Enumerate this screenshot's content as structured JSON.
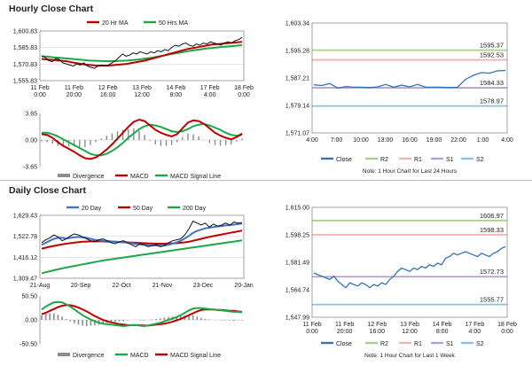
{
  "sections": {
    "hourly": {
      "title": "Hourly Close Chart"
    },
    "daily": {
      "title": "Daily Close Chart"
    }
  },
  "colors": {
    "price": "#111111",
    "ma_fast": "#c00000",
    "ma_slow": "#1ea64a",
    "close": "#2f74b5",
    "r2": "#a8d08d",
    "r1": "#f0b3b3",
    "s1": "#b6a0c8",
    "s2": "#7fc8d8",
    "macd": "#c00000",
    "signal": "#1ea64a",
    "div": "#8c8c8c",
    "blue_ma": "#4472c4",
    "grid": "#d9d9d9"
  },
  "chart_data": [
    {
      "id": "hourly-ma",
      "type": "line",
      "legend": [
        "20 Hr MA",
        "50 Hrs MA"
      ],
      "y_ticks": [
        "1,600.83",
        "1,585.83",
        "1,570.83",
        "1,555.83"
      ],
      "ylim": [
        1555.83,
        1600.83
      ],
      "x_ticks": [
        "11 Feb\n0:00",
        "11 Feb\n20:00",
        "12 Feb\n16:00",
        "13 Feb\n12:00",
        "14 Feb\n8:00",
        "17 Feb\n4:00",
        "18 Feb\n0:00"
      ],
      "series": [
        {
          "name": "Close",
          "values": [
            1578,
            1577,
            1574,
            1573,
            1576,
            1575,
            1572,
            1571,
            1570,
            1569,
            1571,
            1570,
            1572,
            1569,
            1568,
            1567,
            1569,
            1570,
            1569,
            1570,
            1572,
            1574,
            1577,
            1580,
            1578,
            1579,
            1581,
            1580,
            1582,
            1581,
            1580,
            1582,
            1581,
            1583,
            1582,
            1584,
            1583,
            1586,
            1588,
            1587,
            1589,
            1590,
            1588,
            1587,
            1589,
            1588,
            1590,
            1589,
            1591,
            1590,
            1589,
            1588,
            1590,
            1591,
            1590,
            1592,
            1593,
            1595
          ]
        },
        {
          "name": "20 Hr MA",
          "values": [
            1575.5,
            1575,
            1574.5,
            1574,
            1573.5,
            1572.5,
            1571.5,
            1570.5,
            1570,
            1569.5,
            1569.5,
            1569.5,
            1570,
            1570.5,
            1571,
            1572,
            1573,
            1574,
            1575.5,
            1577,
            1578.5,
            1580,
            1581.5,
            1583,
            1584.5,
            1585.5,
            1586.5,
            1587.5,
            1588.5,
            1589,
            1589.5,
            1590,
            1590.5,
            1591
          ]
        },
        {
          "name": "50 Hrs MA",
          "values": [
            1578,
            1577.5,
            1577,
            1576.5,
            1576,
            1575.5,
            1575,
            1574.5,
            1574,
            1573.8,
            1573.6,
            1573.5,
            1573.5,
            1573.8,
            1574,
            1574.5,
            1575,
            1575.8,
            1576.5,
            1577.5,
            1578.5,
            1579.5,
            1580.5,
            1581.5,
            1582.5,
            1583.3,
            1584,
            1584.8,
            1585.5,
            1586,
            1586.5,
            1587,
            1587.5,
            1588
          ]
        }
      ]
    },
    {
      "id": "hourly-macd",
      "type": "line",
      "legend": [
        "Divergence",
        "MACD",
        "MACD Signal Line"
      ],
      "y_ticks": [
        "3.65",
        "0.00",
        "-3.65"
      ],
      "ylim": [
        -3.65,
        3.65
      ],
      "series": [
        {
          "name": "MACD",
          "values": [
            0.8,
            0.7,
            0.3,
            -0.3,
            -0.8,
            -1.2,
            -1.6,
            -2.1,
            -2.5,
            -2.6,
            -2.4,
            -1.9,
            -1.3,
            -0.6,
            0.2,
            1.0,
            1.8,
            2.5,
            2.8,
            2.6,
            2.0,
            1.4,
            1.0,
            0.7,
            0.5,
            0.8,
            1.6,
            2.4,
            2.7,
            2.6,
            2.2,
            1.6,
            1.0,
            0.6,
            0.3,
            0.1,
            0.4,
            0.9
          ]
        },
        {
          "name": "MACD Signal Line",
          "values": [
            1.0,
            1.0,
            0.8,
            0.5,
            0.1,
            -0.3,
            -0.7,
            -1.1,
            -1.5,
            -1.9,
            -2.1,
            -2.1,
            -1.9,
            -1.5,
            -1.0,
            -0.4,
            0.3,
            0.9,
            1.5,
            1.9,
            2.1,
            2.0,
            1.8,
            1.5,
            1.2,
            1.1,
            1.2,
            1.5,
            1.9,
            2.1,
            2.2,
            2.0,
            1.7,
            1.4,
            1.0,
            0.7,
            0.6,
            0.7
          ]
        },
        {
          "name": "Divergence",
          "values": [
            -0.2,
            -0.3,
            -0.5,
            -0.8,
            -0.9,
            -0.9,
            -0.9,
            -1.0,
            -1.0,
            -0.7,
            -0.3,
            0.2,
            0.6,
            0.9,
            1.2,
            1.4,
            1.5,
            1.6,
            1.3,
            0.7,
            -0.1,
            -0.6,
            -0.8,
            -0.8,
            -0.7,
            -0.3,
            0.4,
            0.9,
            0.8,
            0.5,
            0.0,
            -0.4,
            -0.7,
            -0.8,
            -0.7,
            -0.6,
            -0.2,
            0.2
          ]
        }
      ]
    },
    {
      "id": "hourly-levels",
      "type": "line",
      "legend": [
        "Close",
        "R2",
        "R1",
        "S1",
        "S2"
      ],
      "note": "Note: 1 Hour Chart for Last 24 Hours",
      "y_ticks": [
        "1,603.34",
        "1,595.28",
        "1,587.21",
        "1,579.14",
        "1,571.07"
      ],
      "ylim": [
        1571.07,
        1603.34
      ],
      "x_ticks": [
        "4:00",
        "7:00",
        "10:00",
        "13:00",
        "16:00",
        "19:00",
        "22:00",
        "1:00",
        "4:00"
      ],
      "levels": [
        {
          "name": "R2",
          "value": 1595.37,
          "label": "1595.37"
        },
        {
          "name": "R1",
          "value": 1592.53,
          "label": "1592.53"
        },
        {
          "name": "S1",
          "value": 1584.33,
          "label": "1584.33"
        },
        {
          "name": "S2",
          "value": 1578.97,
          "label": "1578.97"
        }
      ],
      "close": [
        1585.2,
        1585.0,
        1585.6,
        1584.2,
        1584.7,
        1584.5,
        1584.5,
        1584.4,
        1584.6,
        1585.3,
        1584.5,
        1585.1,
        1584.6,
        1585.3,
        1584.5,
        1584.5,
        1584.5,
        1584.4,
        1584.5,
        1586.8,
        1588.0,
        1588.8,
        1588.6,
        1589.3,
        1589.4
      ]
    },
    {
      "id": "daily-ma",
      "type": "line",
      "legend": [
        "20 Day",
        "50 Day",
        "200 Day"
      ],
      "y_ticks": [
        "1,629.43",
        "1,522.78",
        "1,416.12",
        "1,309.47"
      ],
      "ylim": [
        1309.47,
        1629.43
      ],
      "x_ticks": [
        "21-Aug",
        "20-Sep",
        "22-Oct",
        "21-Nov",
        "23-Dec",
        "20-Jan"
      ],
      "series": [
        {
          "name": "Close",
          "values": [
            1490,
            1505,
            1515,
            1530,
            1520,
            1500,
            1510,
            1525,
            1535,
            1530,
            1520,
            1510,
            1500,
            1495,
            1505,
            1510,
            1500,
            1490,
            1485,
            1495,
            1500,
            1490,
            1480,
            1470,
            1485,
            1480,
            1470,
            1475,
            1480,
            1470,
            1475,
            1490,
            1500,
            1505,
            1510,
            1530,
            1560,
            1600,
            1590,
            1580,
            1590,
            1570,
            1585,
            1575,
            1580,
            1590,
            1580,
            1595,
            1590,
            1592
          ]
        },
        {
          "name": "20 Day",
          "values": [
            1480,
            1490,
            1500,
            1510,
            1515,
            1515,
            1512,
            1515,
            1518,
            1520,
            1518,
            1515,
            1510,
            1505,
            1502,
            1500,
            1500,
            1497,
            1495,
            1493,
            1492,
            1490,
            1488,
            1484,
            1482,
            1480,
            1478,
            1477,
            1476,
            1475,
            1476,
            1480,
            1485,
            1492,
            1500,
            1512,
            1525,
            1540,
            1550,
            1557,
            1563,
            1567,
            1570,
            1573,
            1575,
            1578,
            1580,
            1582,
            1585,
            1588
          ]
        },
        {
          "name": "50 Day",
          "values": [
            1460,
            1465,
            1470,
            1474,
            1478,
            1482,
            1485,
            1488,
            1491,
            1493,
            1495,
            1496,
            1497,
            1497,
            1497,
            1497,
            1496,
            1496,
            1495,
            1494,
            1493,
            1492,
            1491,
            1490,
            1489,
            1488,
            1487,
            1486,
            1485,
            1485,
            1485,
            1486,
            1487,
            1488,
            1490,
            1492,
            1495,
            1500,
            1505,
            1510,
            1515,
            1520,
            1524,
            1528,
            1532,
            1536,
            1540,
            1544,
            1548,
            1552
          ]
        },
        {
          "name": "200 Day",
          "values": [
            1335,
            1340,
            1345,
            1350,
            1355,
            1360,
            1364,
            1368,
            1372,
            1376,
            1380,
            1384,
            1388,
            1392,
            1396,
            1400,
            1403,
            1406,
            1409,
            1412,
            1415,
            1418,
            1421,
            1424,
            1427,
            1430,
            1433,
            1436,
            1439,
            1442,
            1445,
            1448,
            1451,
            1454,
            1457,
            1460,
            1463,
            1466,
            1469,
            1472,
            1475,
            1478,
            1481,
            1484,
            1487,
            1490,
            1493,
            1496,
            1499,
            1502
          ]
        }
      ]
    },
    {
      "id": "daily-macd",
      "type": "line",
      "legend": [
        "Divergence",
        "MACD",
        "MACD Signal Line"
      ],
      "y_ticks": [
        "50.50",
        "0.00",
        "-50.50"
      ],
      "ylim": [
        -50.5,
        50.5
      ],
      "series": [
        {
          "name": "MACD",
          "values": [
            22,
            28,
            33,
            37,
            38,
            37,
            33,
            28,
            22,
            16,
            10,
            5,
            1,
            -3,
            -6,
            -8,
            -9,
            -10,
            -11,
            -12,
            -13,
            -12,
            -11,
            -11,
            -12,
            -13,
            -12,
            -10,
            -8,
            -6,
            -3,
            0,
            3,
            6,
            10,
            15,
            20,
            24,
            25,
            25,
            24,
            23,
            22,
            21,
            20,
            19,
            18,
            17,
            17,
            16
          ]
        },
        {
          "name": "MACD Signal Line",
          "values": [
            12,
            15,
            19,
            23,
            27,
            30,
            31,
            31,
            29,
            26,
            22,
            18,
            13,
            8,
            4,
            0,
            -3,
            -5,
            -7,
            -9,
            -10,
            -11,
            -11,
            -11,
            -11,
            -12,
            -12,
            -11,
            -10,
            -9,
            -8,
            -6,
            -4,
            -1,
            2,
            6,
            10,
            14,
            18,
            21,
            22,
            22,
            22,
            21,
            21,
            20,
            19,
            19,
            18,
            17
          ]
        },
        {
          "name": "Divergence",
          "values": [
            10,
            13,
            14,
            14,
            11,
            7,
            2,
            -3,
            -7,
            -10,
            -12,
            -13,
            -12,
            -11,
            -10,
            -8,
            -6,
            -5,
            -4,
            -3,
            -3,
            -1,
            0,
            0,
            -1,
            -1,
            0,
            1,
            2,
            3,
            5,
            6,
            7,
            7,
            8,
            9,
            10,
            10,
            7,
            4,
            2,
            1,
            0,
            0,
            -1,
            -1,
            -1,
            -2,
            -1,
            -1
          ]
        }
      ]
    },
    {
      "id": "daily-levels",
      "type": "line",
      "legend": [
        "Close",
        "R2",
        "R1",
        "S1",
        "S2"
      ],
      "note": "Note: 1 Hour Chart for Last 1 Week",
      "y_ticks": [
        "1,615.00",
        "1,598.25",
        "1,581.49",
        "1,564.74",
        "1,547.99"
      ],
      "ylim": [
        1547.99,
        1615.0
      ],
      "x_ticks": [
        "11 Feb\n0:00",
        "11 Feb\n20:00",
        "12 Feb\n16:00",
        "13 Feb\n12:00",
        "14 Feb\n8:00",
        "17 Feb\n4:00",
        "18 Feb\n0:00"
      ],
      "levels": [
        {
          "name": "R2",
          "value": 1606.97,
          "label": "1606.97"
        },
        {
          "name": "R1",
          "value": 1598.33,
          "label": "1598.33"
        },
        {
          "name": "S1",
          "value": 1572.73,
          "label": "1572.73"
        },
        {
          "name": "S2",
          "value": 1555.77,
          "label": "1555.77"
        }
      ],
      "close": [
        1575,
        1574,
        1573,
        1572,
        1571,
        1573,
        1570,
        1568,
        1566,
        1569,
        1568,
        1567,
        1569,
        1568,
        1566,
        1568,
        1567,
        1569,
        1568,
        1571,
        1573,
        1576,
        1578,
        1577,
        1576,
        1578,
        1577,
        1579,
        1578,
        1580,
        1579,
        1581,
        1580,
        1584,
        1585,
        1587,
        1586,
        1587,
        1588,
        1587,
        1586,
        1585,
        1587,
        1586,
        1585,
        1587,
        1588,
        1590,
        1591
      ]
    }
  ]
}
